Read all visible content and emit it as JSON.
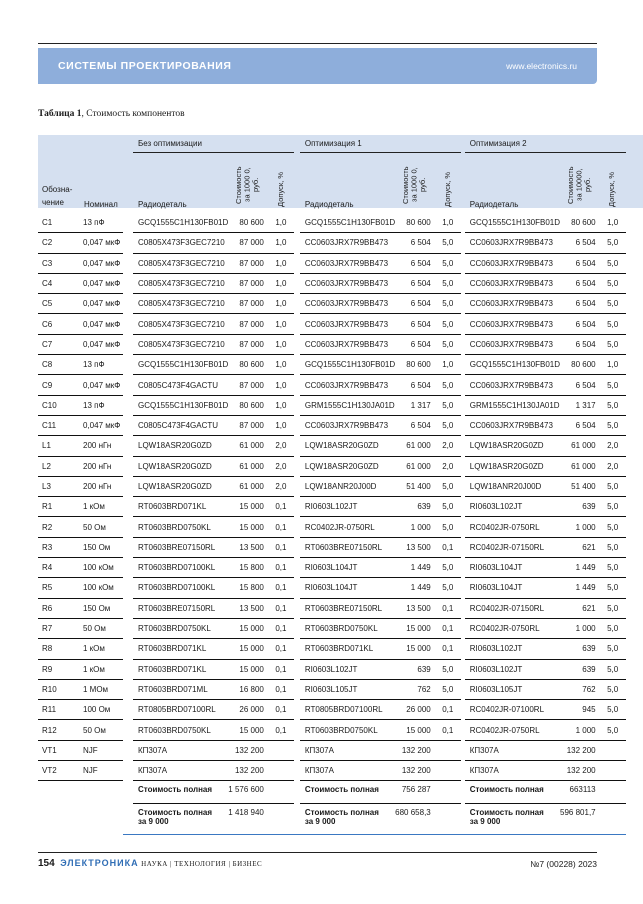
{
  "header": {
    "section": "СИСТЕМЫ ПРОЕКТИРОВАНИЯ",
    "url": "www.electronics.ru"
  },
  "caption": {
    "label": "Таблица 1",
    "text": ", Стоимость компонентов"
  },
  "table": {
    "col_designation": "Обозна-\nчение",
    "col_nominal": "Номинал",
    "groups": [
      "Без оптимизации",
      "Оптимизация 1",
      "Оптимизация 2"
    ],
    "col_part": "Радиодеталь",
    "col_cost": [
      "Стоимость за 1000 0, руб.",
      "Стоимость за 1000 0, руб.",
      "Стоимость за 10000, руб."
    ],
    "col_tol": "Допуск, %",
    "rows": [
      [
        "C1",
        "13 пФ",
        "GCQ1555C1H130FB01D",
        "80 600",
        "1,0",
        "GCQ1555C1H130FB01D",
        "80 600",
        "1,0",
        "GCQ1555C1H130FB01D",
        "80 600",
        "1,0"
      ],
      [
        "C2",
        "0,047 мкФ",
        "C0805X473F3GEC7210",
        "87 000",
        "1,0",
        "CC0603JRX7R9BB473",
        "6 504",
        "5,0",
        "CC0603JRX7R9BB473",
        "6 504",
        "5,0"
      ],
      [
        "C3",
        "0,047 мкФ",
        "C0805X473F3GEC7210",
        "87 000",
        "1,0",
        "CC0603JRX7R9BB473",
        "6 504",
        "5,0",
        "CC0603JRX7R9BB473",
        "6 504",
        "5,0"
      ],
      [
        "C4",
        "0,047 мкФ",
        "C0805X473F3GEC7210",
        "87 000",
        "1,0",
        "CC0603JRX7R9BB473",
        "6 504",
        "5,0",
        "CC0603JRX7R9BB473",
        "6 504",
        "5,0"
      ],
      [
        "C5",
        "0,047 мкФ",
        "C0805X473F3GEC7210",
        "87 000",
        "1,0",
        "CC0603JRX7R9BB473",
        "6 504",
        "5,0",
        "CC0603JRX7R9BB473",
        "6 504",
        "5,0"
      ],
      [
        "C6",
        "0,047 мкФ",
        "C0805X473F3GEC7210",
        "87 000",
        "1,0",
        "CC0603JRX7R9BB473",
        "6 504",
        "5,0",
        "CC0603JRX7R9BB473",
        "6 504",
        "5,0"
      ],
      [
        "C7",
        "0,047 мкФ",
        "C0805X473F3GEC7210",
        "87 000",
        "1,0",
        "CC0603JRX7R9BB473",
        "6 504",
        "5,0",
        "CC0603JRX7R9BB473",
        "6 504",
        "5,0"
      ],
      [
        "C8",
        "13 пФ",
        "GCQ1555C1H130FB01D",
        "80 600",
        "1,0",
        "GCQ1555C1H130FB01D",
        "80 600",
        "1,0",
        "GCQ1555C1H130FB01D",
        "80 600",
        "1,0"
      ],
      [
        "C9",
        "0,047 мкФ",
        "C0805C473F4GACTU",
        "87 000",
        "1,0",
        "CC0603JRX7R9BB473",
        "6 504",
        "5,0",
        "CC0603JRX7R9BB473",
        "6 504",
        "5,0"
      ],
      [
        "C10",
        "13 пФ",
        "GCQ1555C1H130FB01D",
        "80 600",
        "1,0",
        "GRM1555C1H130JA01D",
        "1 317",
        "5,0",
        "GRM1555C1H130JA01D",
        "1 317",
        "5,0"
      ],
      [
        "C11",
        "0,047 мкФ",
        "C0805C473F4GACTU",
        "87 000",
        "1,0",
        "CC0603JRX7R9BB473",
        "6 504",
        "5,0",
        "CC0603JRX7R9BB473",
        "6 504",
        "5,0"
      ],
      [
        "L1",
        "200 нГн",
        "LQW18ASR20G0ZD",
        "61 000",
        "2,0",
        "LQW18ASR20G0ZD",
        "61 000",
        "2,0",
        "LQW18ASR20G0ZD",
        "61 000",
        "2,0"
      ],
      [
        "L2",
        "200 нГн",
        "LQW18ASR20G0ZD",
        "61 000",
        "2,0",
        "LQW18ASR20G0ZD",
        "61 000",
        "2,0",
        "LQW18ASR20G0ZD",
        "61 000",
        "2,0"
      ],
      [
        "L3",
        "200 нГн",
        "LQW18ASR20G0ZD",
        "61 000",
        "2,0",
        "LQW18ANR20J00D",
        "51 400",
        "5,0",
        "LQW18ANR20J00D",
        "51 400",
        "5,0"
      ],
      [
        "R1",
        "1 кОм",
        "RT0603BRD071KL",
        "15 000",
        "0,1",
        "RI0603L102JT",
        "639",
        "5,0",
        "RI0603L102JT",
        "639",
        "5,0"
      ],
      [
        "R2",
        "50 Ом",
        "RT0603BRD0750KL",
        "15 000",
        "0,1",
        "RC0402JR-0750RL",
        "1 000",
        "5,0",
        "RC0402JR-0750RL",
        "1 000",
        "5,0"
      ],
      [
        "R3",
        "150 Ом",
        "RT0603BRE07150RL",
        "13 500",
        "0,1",
        "RT0603BRE07150RL",
        "13 500",
        "0,1",
        "RC0402JR-07150RL",
        "621",
        "5,0"
      ],
      [
        "R4",
        "100 кОм",
        "RT0603BRD07100KL",
        "15 800",
        "0,1",
        "RI0603L104JT",
        "1 449",
        "5,0",
        "RI0603L104JT",
        "1 449",
        "5,0"
      ],
      [
        "R5",
        "100 кОм",
        "RT0603BRD07100KL",
        "15 800",
        "0,1",
        "RI0603L104JT",
        "1 449",
        "5,0",
        "RI0603L104JT",
        "1 449",
        "5,0"
      ],
      [
        "R6",
        "150 Ом",
        "RT0603BRE07150RL",
        "13 500",
        "0,1",
        "RT0603BRE07150RL",
        "13 500",
        "0,1",
        "RC0402JR-07150RL",
        "621",
        "5,0"
      ],
      [
        "R7",
        "50 Ом",
        "RT0603BRD0750KL",
        "15 000",
        "0,1",
        "RT0603BRD0750KL",
        "15 000",
        "0,1",
        "RC0402JR-0750RL",
        "1 000",
        "5,0"
      ],
      [
        "R8",
        "1 кОм",
        "RT0603BRD071KL",
        "15 000",
        "0,1",
        "RT0603BRD071KL",
        "15 000",
        "0,1",
        "RI0603L102JT",
        "639",
        "5,0"
      ],
      [
        "R9",
        "1 кОм",
        "RT0603BRD071KL",
        "15 000",
        "0,1",
        "RI0603L102JT",
        "639",
        "5,0",
        "RI0603L102JT",
        "639",
        "5,0"
      ],
      [
        "R10",
        "1 МОм",
        "RT0603BRD071ML",
        "16 800",
        "0,1",
        "RI0603L105JT",
        "762",
        "5,0",
        "RI0603L105JT",
        "762",
        "5,0"
      ],
      [
        "R11",
        "100 Ом",
        "RT0805BRD07100RL",
        "26 000",
        "0,1",
        "RT0805BRD07100RL",
        "26 000",
        "0,1",
        "RC0402JR-07100RL",
        "945",
        "5,0"
      ],
      [
        "R12",
        "50 Ом",
        "RT0603BRD0750KL",
        "15 000",
        "0,1",
        "RT0603BRD0750KL",
        "15 000",
        "0,1",
        "RC0402JR-0750RL",
        "1 000",
        "5,0"
      ],
      [
        "VT1",
        "NJF",
        "КП307А",
        "132 200",
        "",
        "КП307А",
        "132 200",
        "",
        "КП307А",
        "132 200",
        ""
      ],
      [
        "VT2",
        "NJF",
        "КП307А",
        "132 200",
        "",
        "КП307А",
        "132 200",
        "",
        "КП307А",
        "132 200",
        ""
      ]
    ],
    "totals": [
      {
        "label": "Стоимость полная",
        "values": [
          "1 576 600",
          "756 287",
          "663113"
        ]
      },
      {
        "label": "Стоимость полная\nза 9 000",
        "values": [
          "1 418 940",
          "680 658,3",
          "596 801,7"
        ]
      }
    ]
  },
  "footer": {
    "page": "154",
    "brand": "ЭЛЕКТРОНИКА",
    "tagline": "НАУКА | ТЕХНОЛОГИЯ | БИЗНЕС",
    "issue": "№7 (00228) 2023"
  }
}
